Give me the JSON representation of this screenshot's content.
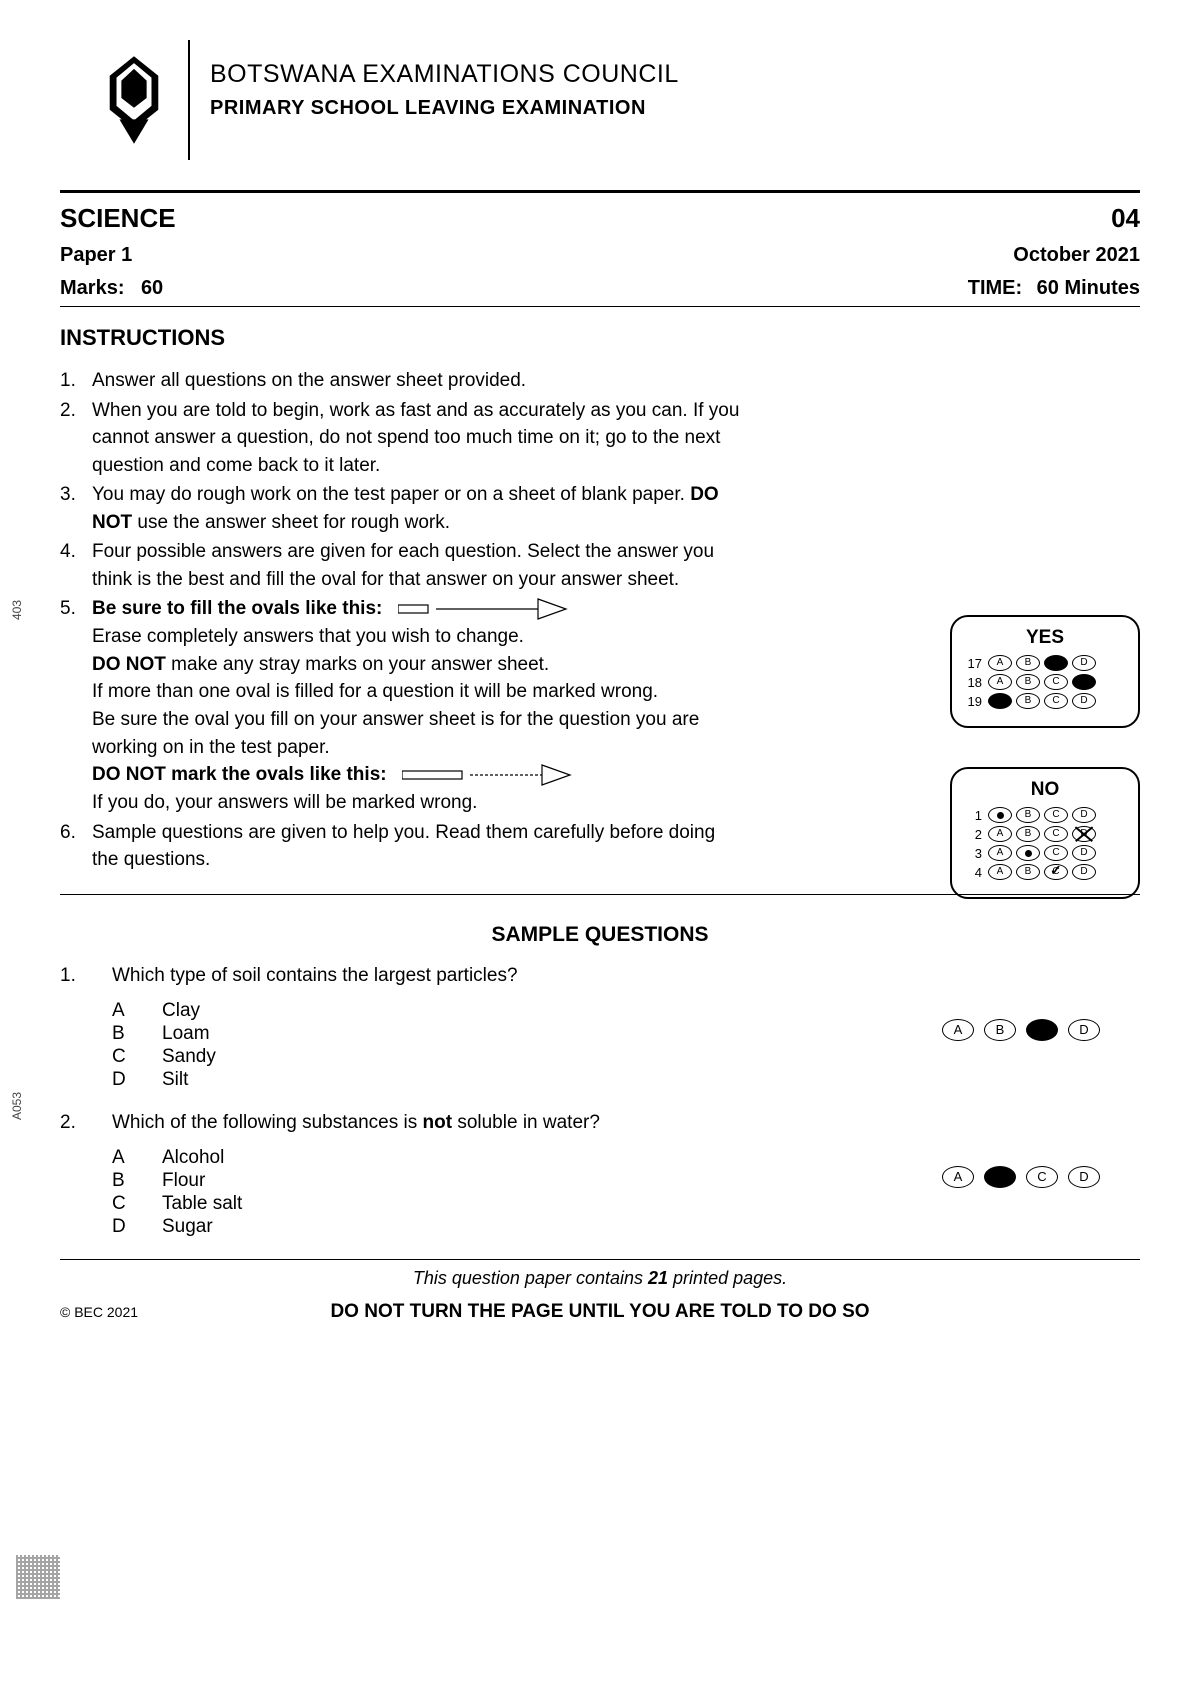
{
  "header": {
    "org": "BOTSWANA EXAMINATIONS COUNCIL",
    "exam": "PRIMARY SCHOOL LEAVING EXAMINATION"
  },
  "meta": {
    "subject": "SCIENCE",
    "code": "04",
    "paper": "Paper 1",
    "date": "October 2021",
    "marks_label": "Marks:",
    "marks_value": "60",
    "time_label": "TIME:",
    "time_value": "60 Minutes"
  },
  "instructions_title": "INSTRUCTIONS",
  "instructions": [
    {
      "n": "1.",
      "text": "Answer all questions on the answer sheet provided."
    },
    {
      "n": "2.",
      "text": "When you are told to begin, work as fast and as accurately as you can.  If you cannot answer a question, do not spend too much time on it; go to the next question and come back to it later."
    },
    {
      "n": "3.",
      "pre": "You may do rough work on the test paper or on a sheet of blank paper.  ",
      "bold": "DO NOT",
      "post": " use the answer sheet for rough work."
    },
    {
      "n": "4.",
      "text": "Four possible answers are given for each question. Select the answer you think is the best and fill the oval for that answer on your answer sheet."
    },
    {
      "n": "5.",
      "bold1": "Be sure to fill the ovals like this:",
      "line2": "Erase completely answers that you wish to change.",
      "bold2": "DO NOT",
      "line2b": " make any stray marks on your answer sheet.",
      "line3": "If more than one oval is filled for a question it will be marked wrong.",
      "line4": "Be sure the oval you fill on your answer sheet is for the question you are working on in the test paper.",
      "bold3": "DO NOT mark the ovals like this:",
      "line5": "If you do, your answers will be marked wrong."
    },
    {
      "n": "6.",
      "text": "Sample questions are given to help you.  Read them carefully before doing the questions."
    }
  ],
  "yes_box": {
    "title": "YES",
    "rows": [
      {
        "n": "17",
        "cells": [
          "A",
          "B",
          "filled",
          "D"
        ]
      },
      {
        "n": "18",
        "cells": [
          "A",
          "B",
          "C",
          "filled"
        ]
      },
      {
        "n": "19",
        "cells": [
          "filled",
          "B",
          "C",
          "D"
        ]
      }
    ]
  },
  "no_box": {
    "title": "NO",
    "rows": [
      {
        "n": "1",
        "cells": [
          "dot",
          "B",
          "C",
          "D"
        ]
      },
      {
        "n": "2",
        "cells": [
          "A",
          "B",
          "C",
          "x"
        ]
      },
      {
        "n": "3",
        "cells": [
          "A",
          "dot",
          "C",
          "D"
        ]
      },
      {
        "n": "4",
        "cells": [
          "A",
          "B",
          "check",
          "D"
        ]
      }
    ]
  },
  "sample_title": "SAMPLE QUESTIONS",
  "questions": [
    {
      "n": "1.",
      "stem": "Which type of soil contains the largest particles?",
      "opts": [
        [
          "A",
          "Clay"
        ],
        [
          "B",
          "Loam"
        ],
        [
          "C",
          "Sandy"
        ],
        [
          "D",
          "Silt"
        ]
      ],
      "answer": [
        "A",
        "B",
        "filled",
        "D"
      ]
    },
    {
      "n": "2.",
      "stem_pre": "Which of the following substances is ",
      "stem_bold": "not",
      "stem_post": " soluble in water?",
      "opts": [
        [
          "A",
          "Alcohol"
        ],
        [
          "B",
          "Flour"
        ],
        [
          "C",
          "Table salt"
        ],
        [
          "D",
          "Sugar"
        ]
      ],
      "answer": [
        "A",
        "filled",
        "C",
        "D"
      ]
    }
  ],
  "footer": {
    "note_pre": "This question paper contains ",
    "note_bold": "21",
    "note_post": " printed pages.",
    "copyright": "© BEC 2021",
    "warn": "DO NOT TURN THE PAGE UNTIL YOU ARE TOLD TO DO SO"
  },
  "side": {
    "code1": "403",
    "code2": "A053"
  }
}
